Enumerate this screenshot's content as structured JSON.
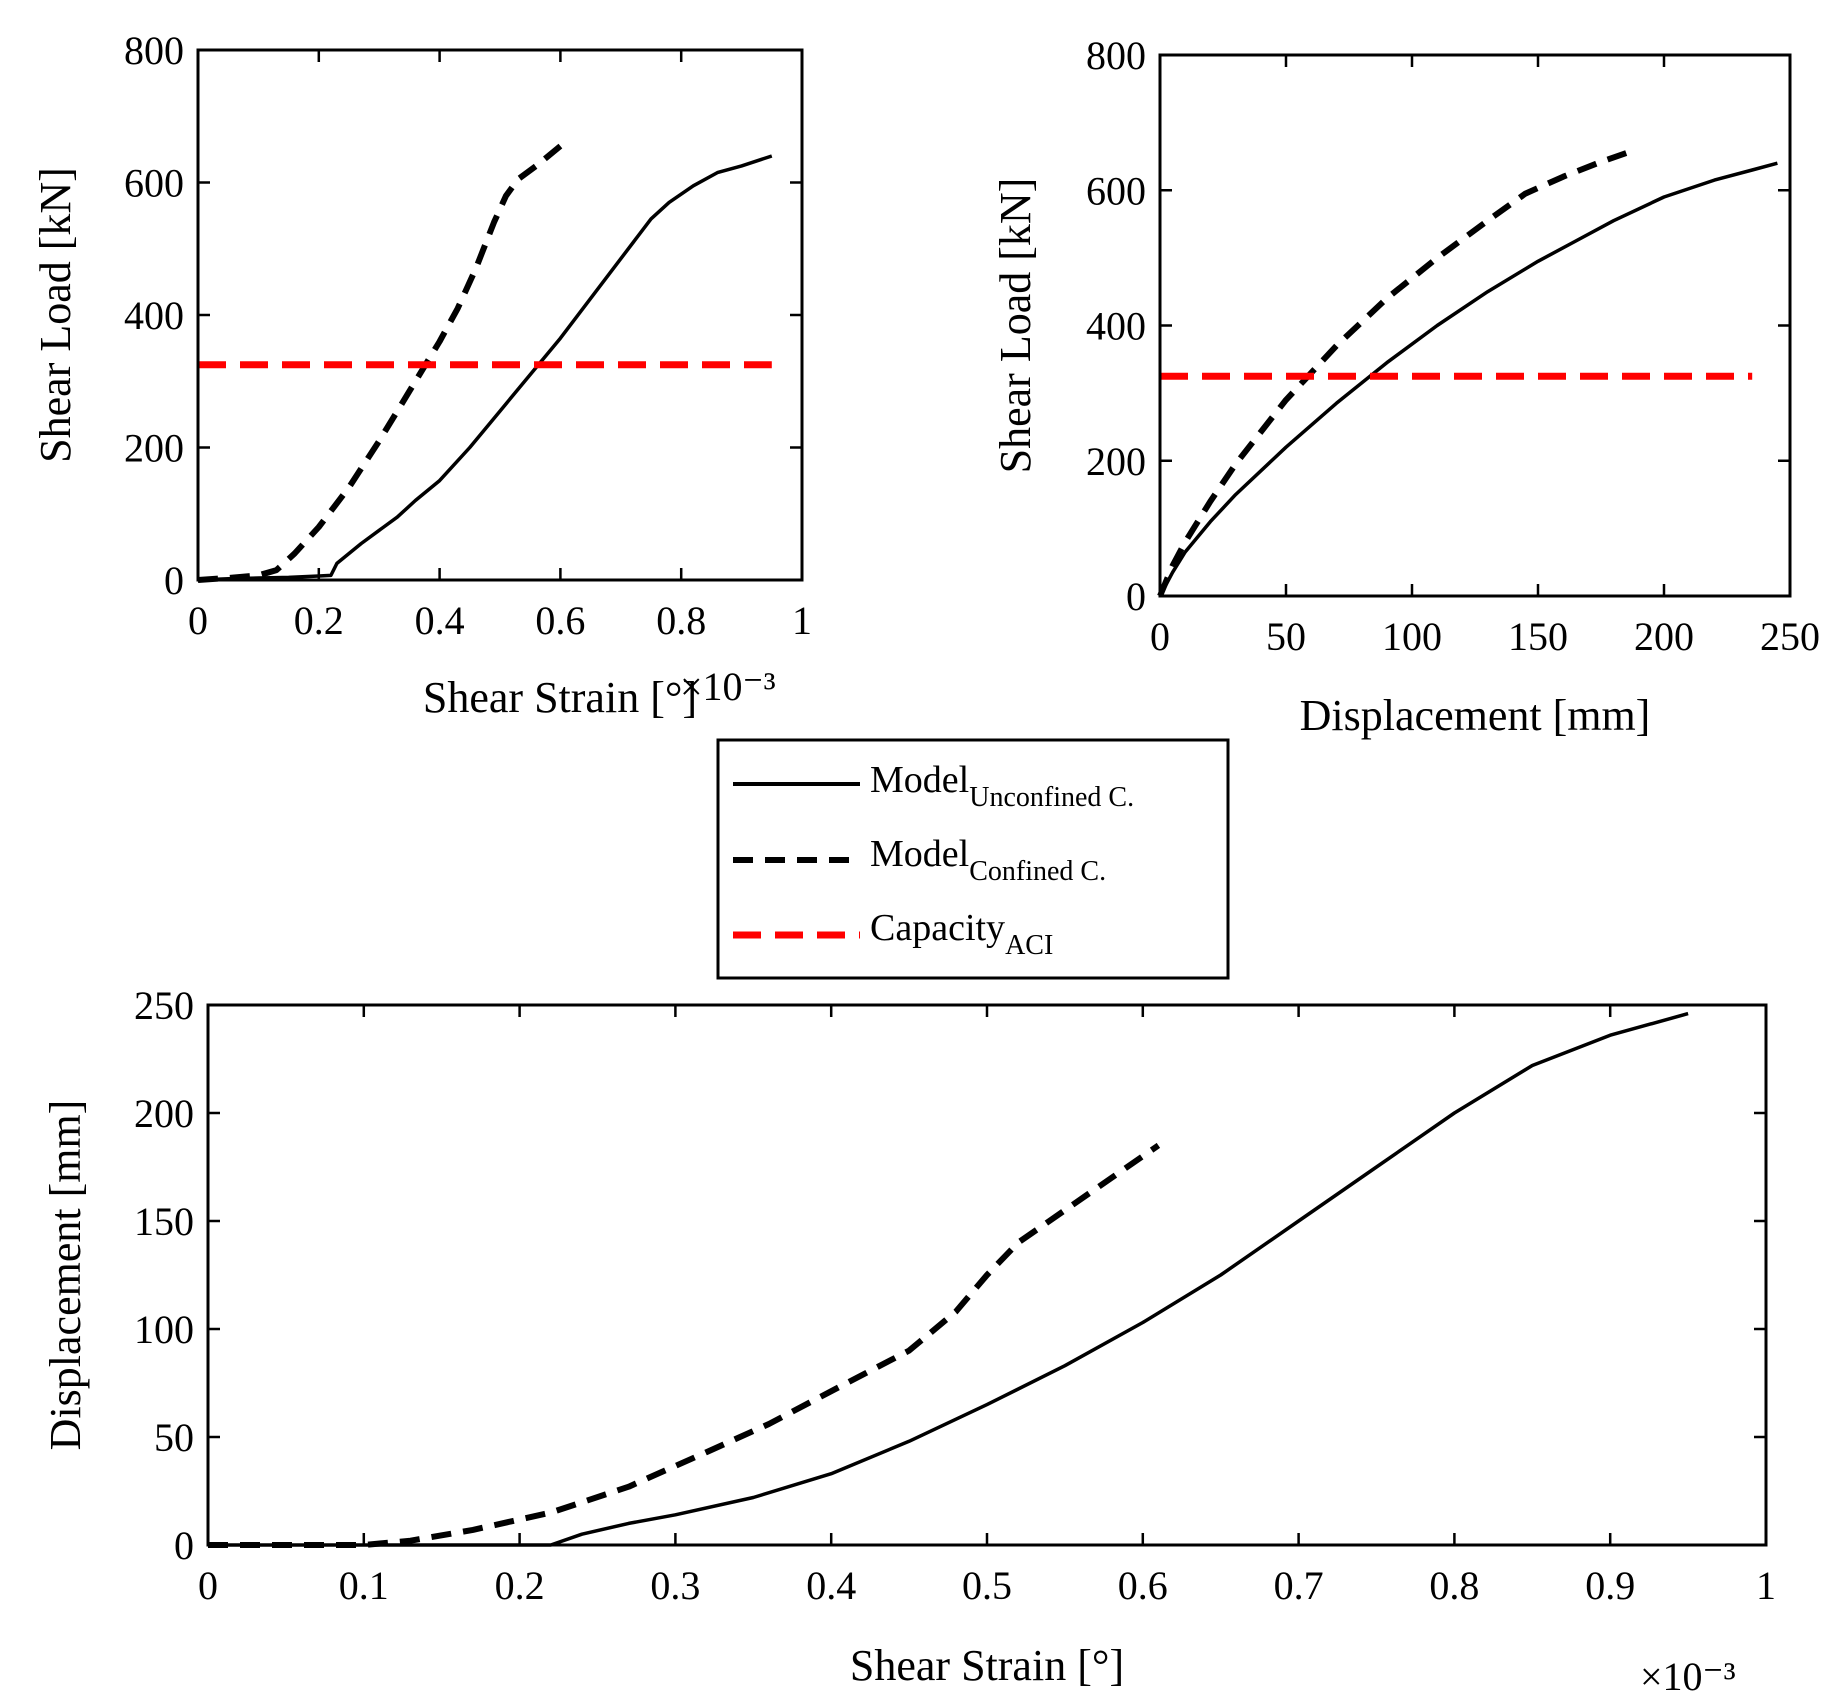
{
  "chart_data": [
    {
      "type": "line",
      "xlabel": "Shear Strain [°]",
      "ylabel": "Shear Load [kN]",
      "x_exponent_label": "×10⁻³",
      "xlim": [
        0,
        1
      ],
      "ylim": [
        0,
        800
      ],
      "xticks": [
        "0",
        "0.2",
        "0.4",
        "0.6",
        "0.8",
        "1"
      ],
      "yticks": [
        "0",
        "200",
        "400",
        "600",
        "800"
      ],
      "grid": false,
      "series": [
        {
          "name": "Model Unconfined C.",
          "style": "solid",
          "color": "#000000",
          "x": [
            0,
            0.05,
            0.1,
            0.15,
            0.2,
            0.22,
            0.23,
            0.25,
            0.27,
            0.3,
            0.33,
            0.36,
            0.4,
            0.45,
            0.5,
            0.55,
            0.6,
            0.65,
            0.7,
            0.75,
            0.78,
            0.82,
            0.86,
            0.9,
            0.95
          ],
          "y": [
            0,
            2,
            3,
            4,
            6,
            7,
            25,
            40,
            55,
            75,
            95,
            120,
            150,
            200,
            255,
            310,
            365,
            425,
            485,
            545,
            570,
            595,
            615,
            625,
            640
          ]
        },
        {
          "name": "Model Confined C.",
          "style": "dashed",
          "color": "#000000",
          "x": [
            0,
            0.05,
            0.1,
            0.13,
            0.16,
            0.2,
            0.25,
            0.3,
            0.35,
            0.4,
            0.43,
            0.46,
            0.49,
            0.51,
            0.53,
            0.56,
            0.6
          ],
          "y": [
            0,
            3,
            7,
            15,
            40,
            80,
            140,
            210,
            285,
            360,
            410,
            470,
            540,
            580,
            605,
            625,
            655
          ]
        },
        {
          "name": "Capacity ACI",
          "style": "red-dashed",
          "color": "#ff0000",
          "x": [
            0,
            0.95
          ],
          "y": [
            325,
            325
          ]
        }
      ]
    },
    {
      "type": "line",
      "xlabel": "Displacement [mm]",
      "ylabel": "Shear Load [kN]",
      "xlim": [
        0,
        250
      ],
      "ylim": [
        0,
        800
      ],
      "xticks": [
        "0",
        "50",
        "100",
        "150",
        "200",
        "250"
      ],
      "yticks": [
        "0",
        "200",
        "400",
        "600",
        "800"
      ],
      "grid": false,
      "series": [
        {
          "name": "Model Unconfined C.",
          "style": "solid",
          "color": "#000000",
          "x": [
            0,
            5,
            10,
            20,
            30,
            50,
            70,
            90,
            110,
            130,
            150,
            165,
            180,
            200,
            220,
            235,
            245
          ],
          "y": [
            0,
            35,
            65,
            110,
            150,
            220,
            285,
            345,
            400,
            450,
            495,
            525,
            555,
            590,
            615,
            630,
            640
          ]
        },
        {
          "name": "Model Confined C.",
          "style": "dashed",
          "color": "#000000",
          "x": [
            0,
            5,
            10,
            20,
            30,
            50,
            70,
            90,
            110,
            130,
            145,
            160,
            175,
            185
          ],
          "y": [
            0,
            45,
            80,
            140,
            195,
            290,
            370,
            440,
            500,
            555,
            595,
            620,
            642,
            655
          ]
        },
        {
          "name": "Capacity ACI",
          "style": "red-dashed",
          "color": "#ff0000",
          "x": [
            0,
            235
          ],
          "y": [
            325,
            325
          ]
        }
      ]
    },
    {
      "type": "line",
      "xlabel": "Shear Strain [°]",
      "ylabel": "Displacement [mm]",
      "x_exponent_label": "×10⁻³",
      "xlim": [
        0,
        1
      ],
      "ylim": [
        0,
        250
      ],
      "xticks": [
        "0",
        "0.1",
        "0.2",
        "0.3",
        "0.4",
        "0.5",
        "0.6",
        "0.7",
        "0.8",
        "0.9",
        "1"
      ],
      "yticks": [
        "0",
        "50",
        "100",
        "150",
        "200",
        "250"
      ],
      "grid": false,
      "series": [
        {
          "name": "Model Unconfined C.",
          "style": "solid",
          "color": "#000000",
          "x": [
            0,
            0.05,
            0.1,
            0.15,
            0.2,
            0.22,
            0.24,
            0.27,
            0.3,
            0.35,
            0.4,
            0.45,
            0.5,
            0.55,
            0.6,
            0.65,
            0.7,
            0.75,
            0.8,
            0.85,
            0.9,
            0.95
          ],
          "y": [
            0,
            0,
            0,
            0,
            0,
            0,
            5,
            10,
            14,
            22,
            33,
            48,
            65,
            83,
            103,
            125,
            150,
            175,
            200,
            222,
            236,
            246
          ]
        },
        {
          "name": "Model Confined C.",
          "style": "dashed",
          "color": "#000000",
          "x": [
            0,
            0.05,
            0.1,
            0.13,
            0.17,
            0.22,
            0.27,
            0.32,
            0.36,
            0.41,
            0.45,
            0.48,
            0.5,
            0.52,
            0.55,
            0.58,
            0.61
          ],
          "y": [
            0,
            0,
            0,
            2,
            7,
            15,
            27,
            43,
            56,
            75,
            90,
            108,
            125,
            140,
            155,
            170,
            185
          ]
        }
      ]
    }
  ],
  "legend": {
    "placement": "center",
    "entries": [
      {
        "main": "Model",
        "sub": "Unconfined C."
      },
      {
        "main": "Model",
        "sub": "Confined C."
      },
      {
        "main": "Capacity",
        "sub": "ACI"
      }
    ]
  }
}
